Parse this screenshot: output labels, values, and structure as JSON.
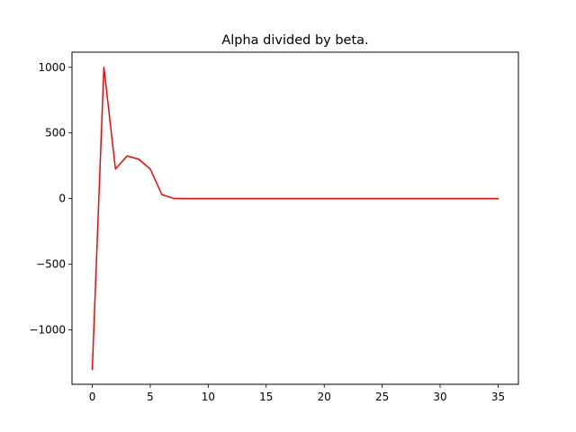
{
  "chart_data": {
    "type": "line",
    "title": "Alpha divided by beta.",
    "xlabel": "",
    "ylabel": "",
    "xlim": [
      -1.75,
      36.75
    ],
    "ylim": [
      -1415,
      1115
    ],
    "x_ticks": [
      0,
      5,
      10,
      15,
      20,
      25,
      30,
      35
    ],
    "y_ticks": [
      -1000,
      -500,
      0,
      500,
      1000
    ],
    "x_tick_labels": [
      "0",
      "5",
      "10",
      "15",
      "20",
      "25",
      "30",
      "35"
    ],
    "y_tick_labels": [
      "−1000",
      "−500",
      "0",
      "500",
      "1000"
    ],
    "grid": false,
    "legend": "none",
    "series": [
      {
        "color": "#ff0000",
        "x": [
          0,
          1,
          2,
          3,
          4,
          5,
          6,
          7,
          8,
          9,
          10,
          11,
          12,
          13,
          14,
          15,
          16,
          17,
          18,
          19,
          20,
          21,
          22,
          23,
          24,
          25,
          26,
          27,
          28,
          29,
          30,
          31,
          32,
          33,
          34,
          35
        ],
        "y": [
          -1300,
          1000,
          225,
          325,
          300,
          225,
          30,
          2,
          0,
          0,
          0,
          0,
          0,
          0,
          0,
          0,
          0,
          0,
          0,
          0,
          0,
          0,
          0,
          0,
          0,
          0,
          0,
          0,
          0,
          0,
          0,
          0,
          0,
          0,
          0,
          0
        ]
      }
    ]
  }
}
